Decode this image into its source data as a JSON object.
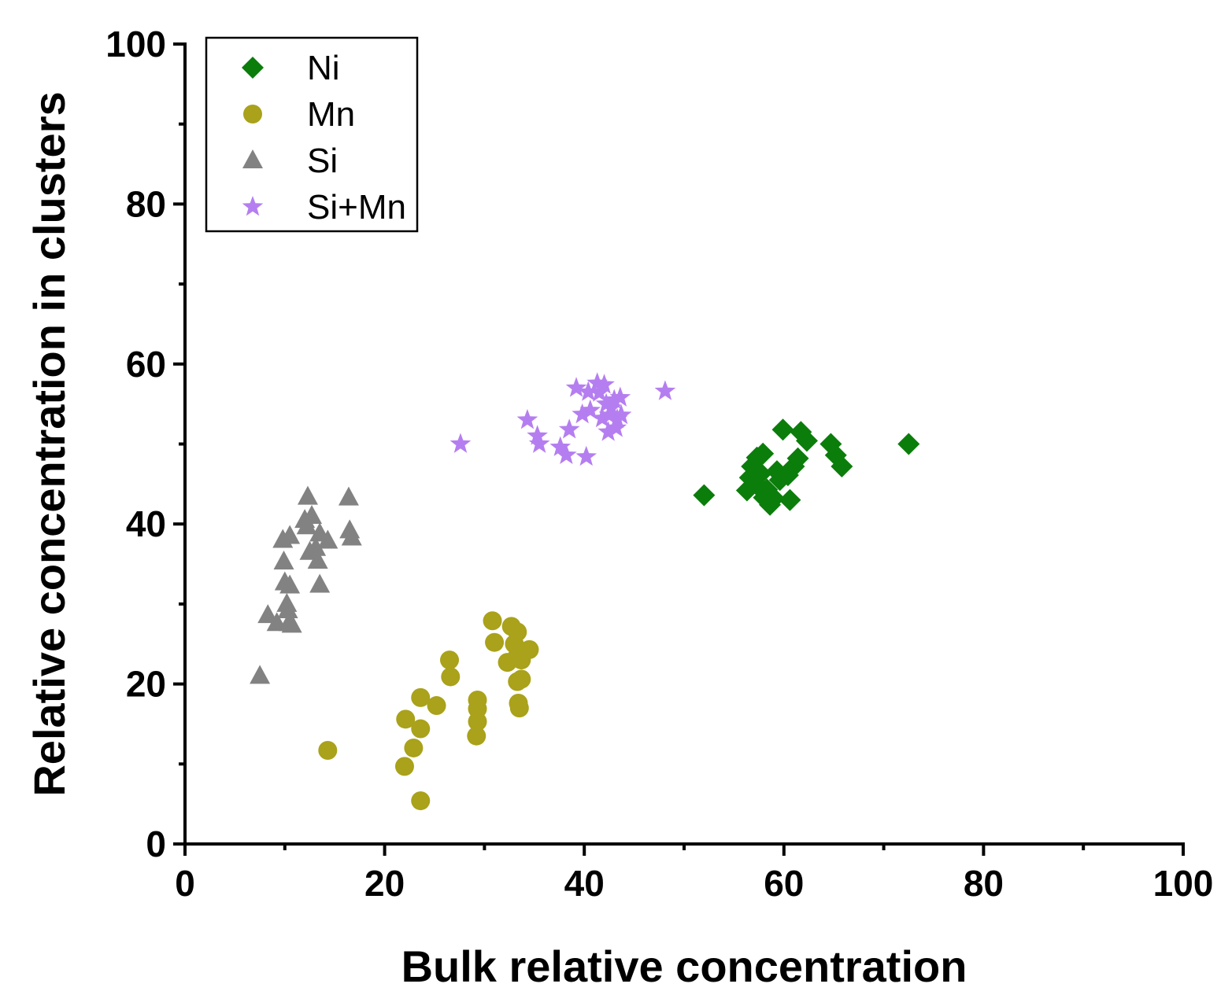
{
  "chart_data": {
    "type": "scatter",
    "title": "",
    "xlabel": "Bulk relative concentration",
    "ylabel": "Relative concentration in clusters",
    "xlim": [
      0,
      100
    ],
    "ylim": [
      0,
      100
    ],
    "xticks": [
      0,
      20,
      40,
      60,
      80,
      100
    ],
    "yticks": [
      0,
      20,
      40,
      60,
      80,
      100
    ],
    "x_minor_step": 10,
    "y_minor_step": 10,
    "grid": false,
    "legend_position": "top-left",
    "series": [
      {
        "name": "Ni",
        "marker": "diamond",
        "color": "#0b7d0b",
        "points": [
          [
            52.0,
            43.6
          ],
          [
            56.3,
            44.2
          ],
          [
            56.6,
            45.8
          ],
          [
            56.8,
            47.2
          ],
          [
            57.2,
            45.0
          ],
          [
            57.3,
            48.3
          ],
          [
            57.7,
            46.3
          ],
          [
            57.9,
            48.8
          ],
          [
            58.0,
            43.3
          ],
          [
            58.3,
            44.3
          ],
          [
            58.6,
            42.4
          ],
          [
            59.0,
            43.2
          ],
          [
            59.3,
            46.6
          ],
          [
            59.6,
            45.5
          ],
          [
            59.9,
            51.8
          ],
          [
            60.4,
            46.1
          ],
          [
            60.6,
            43.0
          ],
          [
            61.0,
            47.2
          ],
          [
            61.4,
            48.2
          ],
          [
            61.7,
            51.5
          ],
          [
            62.3,
            50.4
          ],
          [
            64.7,
            50.0
          ],
          [
            65.2,
            48.6
          ],
          [
            65.8,
            47.2
          ],
          [
            72.5,
            50.0
          ]
        ]
      },
      {
        "name": "Mn",
        "marker": "circle",
        "color": "#a9a21a",
        "points": [
          [
            14.3,
            11.7
          ],
          [
            22.0,
            9.7
          ],
          [
            22.1,
            15.6
          ],
          [
            22.9,
            12.0
          ],
          [
            23.6,
            5.4
          ],
          [
            23.6,
            14.4
          ],
          [
            23.6,
            18.3
          ],
          [
            25.2,
            17.3
          ],
          [
            26.5,
            23.0
          ],
          [
            26.6,
            20.9
          ],
          [
            29.2,
            13.5
          ],
          [
            29.3,
            15.3
          ],
          [
            29.3,
            16.9
          ],
          [
            29.3,
            18.0
          ],
          [
            30.8,
            27.9
          ],
          [
            31.0,
            25.2
          ],
          [
            32.3,
            22.7
          ],
          [
            32.7,
            27.2
          ],
          [
            33.0,
            25.0
          ],
          [
            33.3,
            26.5
          ],
          [
            33.3,
            23.5
          ],
          [
            33.3,
            20.3
          ],
          [
            33.4,
            17.6
          ],
          [
            33.7,
            20.6
          ],
          [
            33.7,
            23.0
          ],
          [
            34.5,
            24.3
          ],
          [
            33.5,
            17.0
          ]
        ]
      },
      {
        "name": "Si",
        "marker": "triangle",
        "color": "#828282",
        "points": [
          [
            7.5,
            21.0
          ],
          [
            8.3,
            28.6
          ],
          [
            9.2,
            27.6
          ],
          [
            9.8,
            38.0
          ],
          [
            9.9,
            35.3
          ],
          [
            10.0,
            32.7
          ],
          [
            10.2,
            30.0
          ],
          [
            10.3,
            29.2
          ],
          [
            10.4,
            27.6
          ],
          [
            10.5,
            38.5
          ],
          [
            10.5,
            32.3
          ],
          [
            10.7,
            27.4
          ],
          [
            12.0,
            40.5
          ],
          [
            12.2,
            39.7
          ],
          [
            12.3,
            43.4
          ],
          [
            12.5,
            36.5
          ],
          [
            12.7,
            41.0
          ],
          [
            13.1,
            37.0
          ],
          [
            13.3,
            35.4
          ],
          [
            13.5,
            32.4
          ],
          [
            13.5,
            38.8
          ],
          [
            14.3,
            37.9
          ],
          [
            16.4,
            43.3
          ],
          [
            16.5,
            39.2
          ],
          [
            16.7,
            38.3
          ]
        ]
      },
      {
        "name": "Si+Mn",
        "marker": "star",
        "color": "#b57ef0",
        "points": [
          [
            27.6,
            50.0
          ],
          [
            34.3,
            53.0
          ],
          [
            35.3,
            51.0
          ],
          [
            35.5,
            50.0
          ],
          [
            37.6,
            49.6
          ],
          [
            38.2,
            48.6
          ],
          [
            38.5,
            51.8
          ],
          [
            39.2,
            57.0
          ],
          [
            39.8,
            53.7
          ],
          [
            40.2,
            48.4
          ],
          [
            40.4,
            56.5
          ],
          [
            40.6,
            54.2
          ],
          [
            41.3,
            57.6
          ],
          [
            41.5,
            56.4
          ],
          [
            41.8,
            53.2
          ],
          [
            42.0,
            57.4
          ],
          [
            42.2,
            55.0
          ],
          [
            42.4,
            51.5
          ],
          [
            42.5,
            53.6
          ],
          [
            42.7,
            54.5
          ],
          [
            43.0,
            55.5
          ],
          [
            43.2,
            52.0
          ],
          [
            43.3,
            53.1
          ],
          [
            43.6,
            55.8
          ],
          [
            43.7,
            53.6
          ],
          [
            48.1,
            56.6
          ]
        ]
      }
    ]
  }
}
